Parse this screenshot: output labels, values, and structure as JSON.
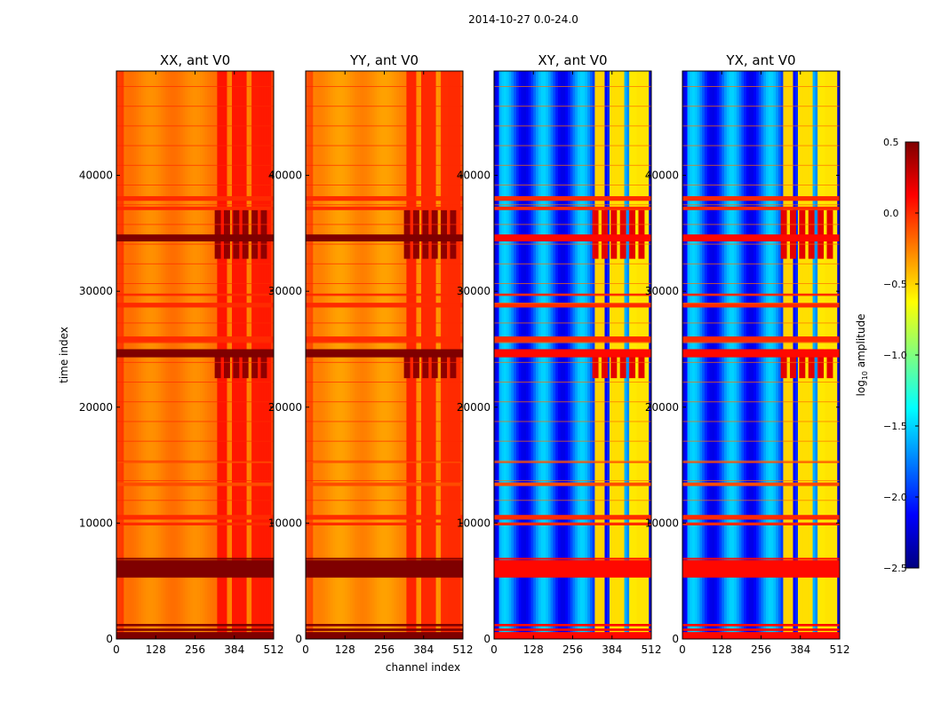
{
  "figure": {
    "suptitle": "2014-10-27 0.0-24.0",
    "xlabel": "channel index",
    "ylabel": "time index"
  },
  "chart_data": {
    "type": "heatmap",
    "suptitle": "2014-10-27 0.0-24.0",
    "xlabel": "channel index",
    "ylabel": "time index",
    "xlim": [
      0,
      512
    ],
    "ylim": [
      0,
      49000
    ],
    "xticks": [
      0,
      128,
      256,
      384,
      512
    ],
    "yticks": [
      0,
      10000,
      20000,
      30000,
      40000
    ],
    "panels": [
      {
        "title": "XX, ant V0",
        "base_level": -0.25,
        "kind": "auto"
      },
      {
        "title": "YY, ant V0",
        "base_level": -0.3,
        "kind": "auto"
      },
      {
        "title": "XY, ant V0",
        "base_level": -1.85,
        "kind": "cross"
      },
      {
        "title": "YX, ant V0",
        "base_level": -1.85,
        "kind": "cross"
      }
    ],
    "flagged_time_rows": [
      [
        0,
        600,
        0.6
      ],
      [
        700,
        900,
        0.55
      ],
      [
        1100,
        1300,
        0.5
      ],
      [
        5300,
        6800,
        0.6
      ],
      [
        6850,
        7000,
        0.5
      ],
      [
        9800,
        10050,
        0.0
      ],
      [
        10300,
        10700,
        0.0
      ],
      [
        13200,
        13500,
        -0.1
      ],
      [
        15200,
        15300,
        -0.1
      ],
      [
        24300,
        25000,
        0.55
      ],
      [
        25600,
        26100,
        0.0
      ],
      [
        28600,
        29000,
        0.0
      ],
      [
        29600,
        29800,
        0.0
      ],
      [
        34300,
        34900,
        0.55
      ],
      [
        37000,
        37300,
        0.0
      ],
      [
        37800,
        38200,
        0.0
      ]
    ],
    "bright_channel_bands": [
      [
        330,
        360,
        1.0
      ],
      [
        380,
        420,
        0.9
      ],
      [
        440,
        460,
        0.8
      ],
      [
        470,
        500,
        0.85
      ]
    ],
    "saturated_blocks": [
      [
        320,
        500,
        22500,
        25000
      ],
      [
        320,
        500,
        32800,
        37000
      ]
    ],
    "colorbar": {
      "label": "log10 amplitude",
      "label_main": "log",
      "label_sub": "10",
      "label_tail": " amplitude",
      "vmin": -2.5,
      "vmax": 0.5,
      "ticks": [
        0.5,
        0.0,
        -0.5,
        -1.0,
        -1.5,
        -2.0,
        -2.5
      ],
      "tick_labels": [
        "0.5",
        "0.0",
        "−0.5",
        "−1.0",
        "−1.5",
        "−2.0",
        "−2.5"
      ],
      "colormap": "jet",
      "colors": [
        "#00007f",
        "#0000ff",
        "#007fff",
        "#00ffff",
        "#7fff7f",
        "#ffff00",
        "#ff7f00",
        "#ff0000",
        "#7f0000"
      ]
    }
  }
}
